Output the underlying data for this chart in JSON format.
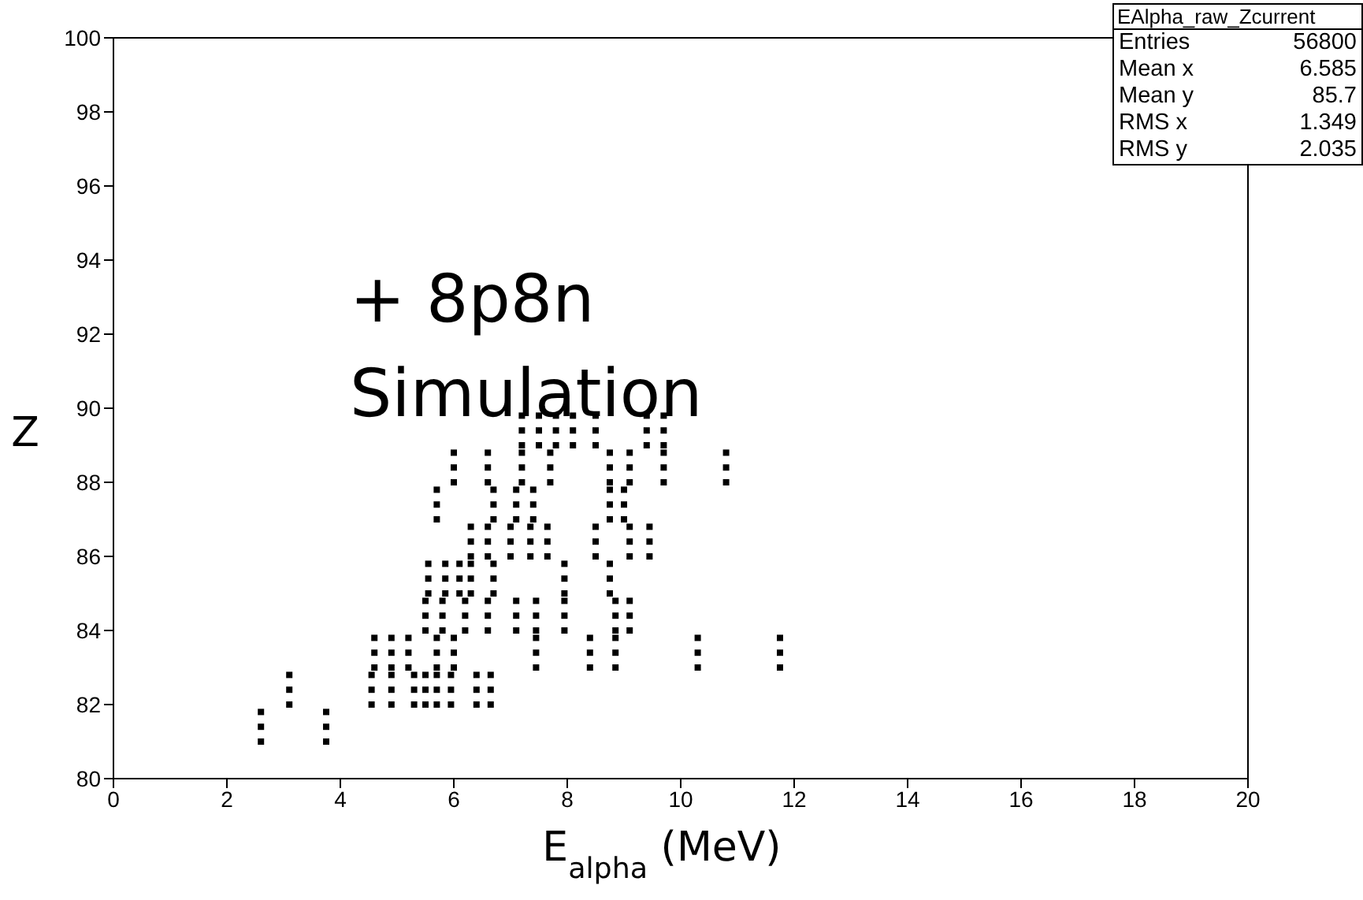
{
  "chart_data": {
    "type": "scatter",
    "xlabel": "E$_{alpha}$ (MeV)",
    "ylabel": "Z",
    "annotations": [
      "+ 8p8n Simulation",
      "EAlpha_raw_Zcurrent",
      "Entries 56800",
      "Mean x 6.585",
      "Mean y 85.7",
      "RMS x 1.349",
      "RMS y 2.035"
    ],
    "xlim": [
      0,
      20
    ],
    "xticks": [
      0,
      2,
      4,
      6,
      8,
      10,
      12,
      14,
      16,
      18,
      20
    ],
    "ylim": [
      80,
      100
    ],
    "yticks": [
      80,
      82,
      84,
      86,
      88,
      90,
      92,
      94,
      96,
      98,
      100
    ],
    "grid": false,
    "legend": false,
    "marker": "square",
    "series": [
      {
        "color": "#000000",
        "x": [
          7.2,
          7.2,
          7.2,
          7.5,
          7.5,
          7.5,
          7.8,
          7.8,
          7.8,
          8.1,
          8.1,
          8.1,
          8.5,
          8.5,
          8.5,
          9.4,
          9.4,
          9.4,
          9.7,
          9.7,
          9.7,
          6.0,
          6.0,
          6.0,
          6.6,
          6.6,
          6.6,
          7.2,
          7.2,
          7.2,
          7.7,
          7.7,
          7.7,
          8.75,
          8.75,
          8.75,
          9.1,
          9.1,
          9.1,
          9.7,
          9.7,
          9.7,
          10.8,
          10.8,
          10.8,
          5.7,
          5.7,
          5.7,
          6.7,
          6.7,
          6.7,
          7.1,
          7.1,
          7.1,
          7.4,
          7.4,
          7.4,
          8.75,
          8.75,
          8.75,
          9.0,
          9.0,
          9.0,
          6.3,
          6.3,
          6.3,
          6.6,
          6.6,
          6.6,
          7.0,
          7.0,
          7.0,
          7.35,
          7.35,
          7.35,
          7.65,
          7.65,
          7.65,
          8.5,
          8.5,
          8.5,
          9.1,
          9.1,
          9.1,
          9.45,
          9.45,
          9.45,
          5.55,
          5.55,
          5.55,
          5.85,
          5.85,
          5.85,
          6.1,
          6.1,
          6.1,
          6.3,
          6.3,
          6.3,
          6.7,
          6.7,
          6.7,
          7.95,
          7.95,
          7.95,
          8.75,
          8.75,
          8.75,
          5.5,
          5.5,
          5.5,
          5.8,
          5.8,
          5.8,
          6.2,
          6.2,
          6.2,
          6.6,
          6.6,
          6.6,
          7.1,
          7.1,
          7.1,
          7.45,
          7.45,
          7.45,
          7.95,
          7.95,
          7.95,
          8.85,
          8.85,
          8.85,
          9.1,
          9.1,
          9.1,
          4.6,
          4.6,
          4.6,
          4.9,
          4.9,
          4.9,
          5.2,
          5.2,
          5.2,
          5.7,
          5.7,
          5.7,
          6.0,
          6.0,
          6.0,
          7.45,
          7.45,
          7.45,
          8.4,
          8.4,
          8.4,
          8.85,
          8.85,
          8.85,
          10.3,
          10.3,
          10.3,
          11.75,
          11.75,
          11.75,
          3.1,
          3.1,
          3.1,
          4.55,
          4.55,
          4.55,
          4.9,
          4.9,
          4.9,
          5.3,
          5.3,
          5.3,
          5.5,
          5.5,
          5.5,
          5.7,
          5.7,
          5.7,
          5.95,
          5.95,
          5.95,
          6.4,
          6.4,
          6.4,
          6.65,
          6.65,
          6.65,
          2.6,
          2.6,
          2.6,
          3.75,
          3.75,
          3.75
        ],
        "values": [
          89.8,
          89.4,
          89.0,
          89.8,
          89.4,
          89.0,
          89.8,
          89.4,
          89.0,
          89.8,
          89.4,
          89.0,
          89.8,
          89.4,
          89.0,
          89.8,
          89.4,
          89.0,
          89.8,
          89.4,
          89.0,
          88.8,
          88.4,
          88.0,
          88.8,
          88.4,
          88.0,
          88.8,
          88.4,
          88.0,
          88.8,
          88.4,
          88.0,
          88.8,
          88.4,
          88.0,
          88.8,
          88.4,
          88.0,
          88.8,
          88.4,
          88.0,
          88.8,
          88.4,
          88.0,
          87.8,
          87.4,
          87.0,
          87.8,
          87.4,
          87.0,
          87.8,
          87.4,
          87.0,
          87.8,
          87.4,
          87.0,
          87.8,
          87.4,
          87.0,
          87.8,
          87.4,
          87.0,
          86.8,
          86.4,
          86.0,
          86.8,
          86.4,
          86.0,
          86.8,
          86.4,
          86.0,
          86.8,
          86.4,
          86.0,
          86.8,
          86.4,
          86.0,
          86.8,
          86.4,
          86.0,
          86.8,
          86.4,
          86.0,
          86.8,
          86.4,
          86.0,
          85.8,
          85.4,
          85.0,
          85.8,
          85.4,
          85.0,
          85.8,
          85.4,
          85.0,
          85.8,
          85.4,
          85.0,
          85.8,
          85.4,
          85.0,
          85.8,
          85.4,
          85.0,
          85.8,
          85.4,
          85.0,
          84.8,
          84.4,
          84.0,
          84.8,
          84.4,
          84.0,
          84.8,
          84.4,
          84.0,
          84.8,
          84.4,
          84.0,
          84.8,
          84.4,
          84.0,
          84.8,
          84.4,
          84.0,
          84.8,
          84.4,
          84.0,
          84.8,
          84.4,
          84.0,
          84.8,
          84.4,
          84.0,
          83.8,
          83.4,
          83.0,
          83.8,
          83.4,
          83.0,
          83.8,
          83.4,
          83.0,
          83.8,
          83.4,
          83.0,
          83.8,
          83.4,
          83.0,
          83.8,
          83.4,
          83.0,
          83.8,
          83.4,
          83.0,
          83.8,
          83.4,
          83.0,
          83.8,
          83.4,
          83.0,
          83.8,
          83.4,
          83.0,
          82.8,
          82.4,
          82.0,
          82.8,
          82.4,
          82.0,
          82.8,
          82.4,
          82.0,
          82.8,
          82.4,
          82.0,
          82.8,
          82.4,
          82.0,
          82.8,
          82.4,
          82.0,
          82.8,
          82.4,
          82.0,
          82.8,
          82.4,
          82.0,
          82.8,
          82.4,
          82.0,
          81.8,
          81.4,
          81.0,
          81.8,
          81.4,
          81.0
        ]
      }
    ]
  }
}
